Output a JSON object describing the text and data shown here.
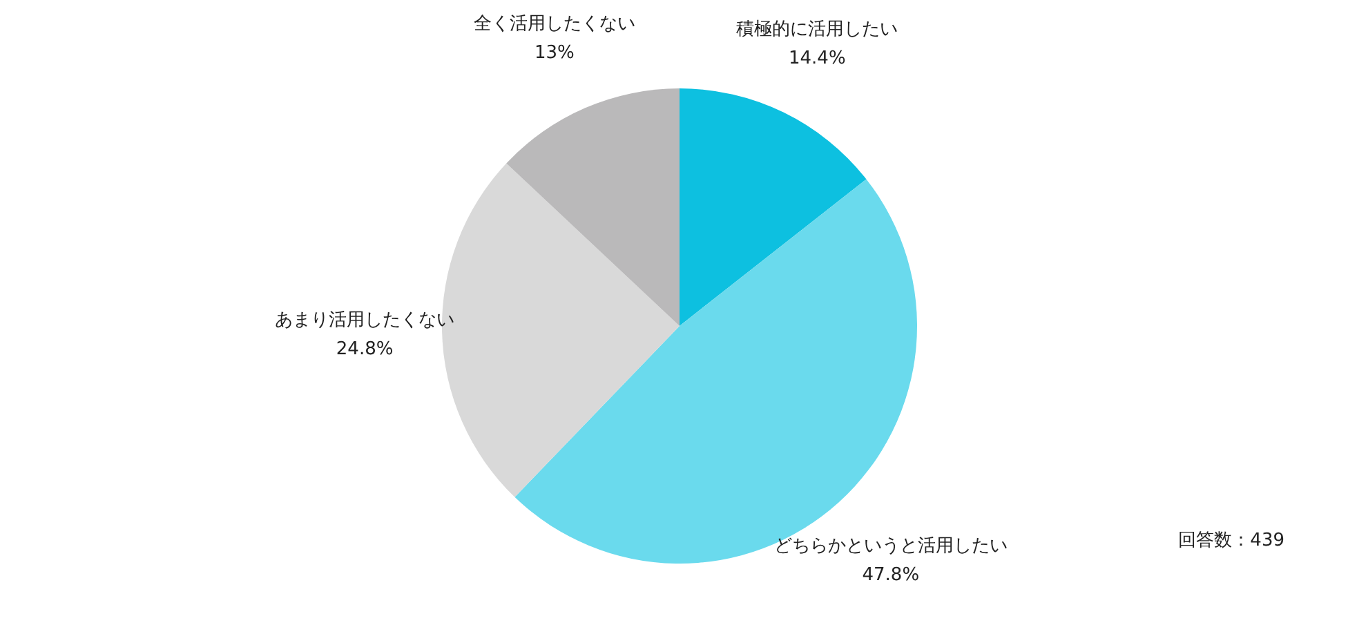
{
  "chart_data": {
    "type": "pie",
    "categories": [
      "積極的に活用したい",
      "どちらかというと活用したい",
      "あまり活用したくない",
      "全く活用したくない"
    ],
    "values": [
      14.4,
      47.8,
      24.8,
      13
    ],
    "value_labels": [
      "14.4%",
      "47.8%",
      "24.8%",
      "13%"
    ],
    "colors": [
      "#0dc0e0",
      "#6adaed",
      "#d9d9d9",
      "#bab9ba"
    ],
    "annotations": [
      "回答数：439"
    ]
  }
}
